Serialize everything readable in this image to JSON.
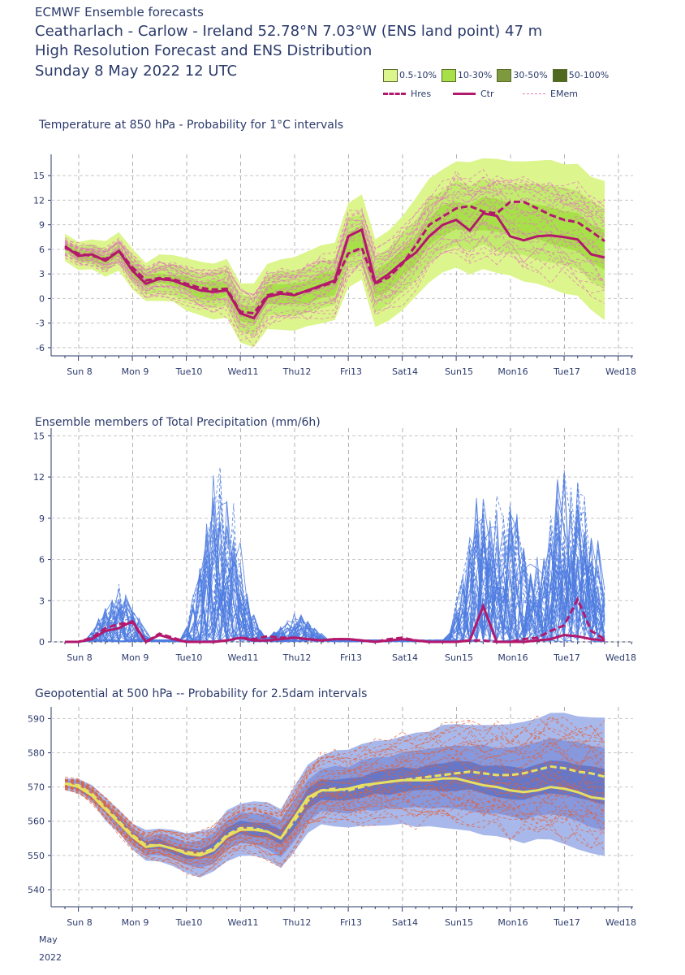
{
  "header": {
    "source": "ECMWF Ensemble forecasts",
    "location": "Ceatharlach - Carlow - Ireland 52.78°N 7.03°W (ENS land point) 47 m",
    "subtitle": "High Resolution Forecast and ENS Distribution",
    "date": "Sunday  8 May 2022 12 UTC"
  },
  "legend": {
    "bands": [
      {
        "label": "0.5-10%",
        "color": "#dcf58c"
      },
      {
        "label": "10-30%",
        "color": "#a8e04a"
      },
      {
        "label": "30-50%",
        "color": "#7f9a3e"
      },
      {
        "label": "50-100%",
        "color": "#4f6a1e"
      }
    ],
    "lines": [
      {
        "label": "Hres",
        "color": "#b3186c",
        "style": "dashed-thick"
      },
      {
        "label": "Ctr",
        "color": "#b3186c",
        "style": "solid-thick"
      },
      {
        "label": "EMem",
        "color": "#e07ab8",
        "style": "dashed-thin"
      }
    ]
  },
  "chart_data": [
    {
      "type": "line",
      "title": "Temperature at 850 hPa - Probability for 1°C intervals",
      "x_labels": [
        "Sun 8",
        "Mon 9",
        "Tue10",
        "Wed11",
        "Thu12",
        "Fri13",
        "Sat14",
        "Sun15",
        "Mon16",
        "Tue17",
        "Wed18"
      ],
      "x_label_colors": [
        "#d62e2e",
        "#2b3a6b",
        "#2b3a6b",
        "#2b3a6b",
        "#2b3a6b",
        "#2b3a6b",
        "#2b3a6b",
        "#d62e2e",
        "#2b3a6b",
        "#2b3a6b",
        "#2b3a6b"
      ],
      "xlim": [
        0,
        10
      ],
      "ylim": [
        -7,
        17
      ],
      "yticks": [
        -6,
        -3,
        0,
        3,
        6,
        9,
        12,
        15
      ],
      "grid": true,
      "series": [
        {
          "name": "Hres",
          "x": [
            0,
            0.25,
            0.5,
            0.75,
            1,
            1.25,
            1.5,
            1.75,
            2,
            2.25,
            2.5,
            2.75,
            3,
            3.25,
            3.5,
            3.75,
            4,
            4.25,
            4.5,
            4.75,
            5,
            5.25,
            5.5,
            5.75,
            6,
            6.25,
            6.5,
            6.75,
            7,
            7.25,
            7.5,
            7.75,
            8,
            8.25,
            8.5,
            8.75,
            9,
            9.25,
            9.5,
            9.75,
            10
          ],
          "values": [
            6.2,
            5.5,
            5.2,
            4.8,
            5.8,
            3.8,
            2.2,
            2.5,
            2.4,
            1.8,
            1.3,
            1.1,
            1.2,
            -1.6,
            -1.8,
            0.4,
            0.8,
            0.5,
            0.9,
            1.5,
            2,
            5.5,
            6.2,
            1.8,
            2.6,
            4.2,
            6.5,
            9,
            10,
            11,
            11.3,
            10.6,
            10.4,
            11.8,
            11.8,
            11,
            10.2,
            9.6,
            9.3,
            8.2,
            7
          ]
        },
        {
          "name": "Ctr",
          "x": [
            0,
            0.25,
            0.5,
            0.75,
            1,
            1.25,
            1.5,
            1.75,
            2,
            2.25,
            2.5,
            2.75,
            3,
            3.25,
            3.5,
            3.75,
            4,
            4.25,
            4.5,
            4.75,
            5,
            5.25,
            5.5,
            5.75,
            6,
            6.25,
            6.5,
            6.75,
            7,
            7.25,
            7.5,
            7.75,
            8,
            8.25,
            8.5,
            8.75,
            9,
            9.25,
            9.5,
            9.75,
            10
          ],
          "values": [
            6.4,
            5.2,
            5.4,
            4.6,
            5.8,
            3.4,
            1.8,
            2.4,
            2.2,
            1.6,
            1,
            0.8,
            1,
            -1.8,
            -2.4,
            0.2,
            0.6,
            0.4,
            1,
            1.6,
            2.2,
            7.6,
            8.4,
            1.9,
            3,
            4.4,
            5.6,
            7.6,
            9,
            9.6,
            8.3,
            10.4,
            10.1,
            7.6,
            7.1,
            7.6,
            7.7,
            7.5,
            7.2,
            5.4,
            5
          ]
        },
        {
          "name": "EMem",
          "values": []
        }
      ]
    },
    {
      "type": "line",
      "title": "Ensemble members of Total Precipitation (mm/6h)",
      "x_labels": [
        "Sun 8",
        "Mon 9",
        "Tue10",
        "Wed11",
        "Thu12",
        "Fri13",
        "Sat14",
        "Sun15",
        "Mon16",
        "Tue17",
        "Wed18"
      ],
      "xlim": [
        0,
        10
      ],
      "ylim": [
        0,
        15.2
      ],
      "yticks": [
        0,
        3,
        6,
        9,
        12,
        15
      ],
      "grid": true,
      "series": [
        {
          "name": "Ctr",
          "x": [
            0,
            0.25,
            0.5,
            0.75,
            1,
            1.25,
            1.5,
            1.75,
            2,
            2.25,
            2.5,
            2.75,
            3,
            3.25,
            3.5,
            3.75,
            4,
            4.25,
            4.5,
            4.75,
            5,
            5.25,
            5.5,
            5.75,
            6,
            6.25,
            6.5,
            6.75,
            7,
            7.25,
            7.5,
            7.75,
            8,
            8.25,
            8.5,
            8.75,
            9,
            9.25,
            9.5,
            9.75,
            10
          ],
          "values": [
            0,
            0,
            0.2,
            0.8,
            1,
            1.5,
            0,
            0.5,
            0.2,
            0,
            0,
            0,
            0.1,
            0.3,
            0.1,
            0.1,
            0.2,
            0.3,
            0.2,
            0.1,
            0.2,
            0.2,
            0.1,
            0,
            0.1,
            0.2,
            0.1,
            0,
            0,
            0,
            0.1,
            2.6,
            0,
            0,
            0,
            0.1,
            0.2,
            0.5,
            0.4,
            0.2,
            0.1
          ]
        },
        {
          "name": "Hres",
          "x": [
            0,
            0.25,
            0.5,
            0.75,
            1,
            1.25,
            1.5,
            1.75,
            2,
            2.25,
            2.5,
            2.75,
            3,
            3.25,
            3.5,
            3.75,
            4,
            4.25,
            4.5,
            4.75,
            5,
            5.25,
            5.5,
            5.75,
            6,
            6.25,
            6.5,
            6.75,
            7,
            7.25,
            7.5,
            7.75,
            8,
            8.25,
            8.5,
            8.75,
            9,
            9.25,
            9.5,
            9.75,
            10
          ],
          "values": [
            0,
            0,
            0.3,
            1,
            1.3,
            1.4,
            0,
            0.6,
            0.3,
            0,
            0,
            0,
            0.1,
            0.3,
            0.2,
            0.4,
            0.3,
            0.3,
            0.2,
            0.1,
            0.2,
            0.2,
            0.1,
            0,
            0.2,
            0.3,
            0.1,
            0,
            0,
            0,
            0.1,
            0.1,
            0,
            0,
            0.2,
            0.3,
            0.8,
            1.2,
            3.1,
            0.8,
            0.2
          ]
        },
        {
          "name": "EMem",
          "values": []
        }
      ]
    },
    {
      "type": "line",
      "title": "Geopotential at 500 hPa -- Probability for 2.5dam intervals",
      "x_labels": [
        "Sun 8",
        "Mon 9",
        "Tue10",
        "Wed11",
        "Thu12",
        "Fri13",
        "Sat14",
        "Sun15",
        "Mon16",
        "Tue17",
        "Wed18"
      ],
      "x_sublabels": [
        "May",
        "2022"
      ],
      "xlim": [
        0,
        10
      ],
      "ylim": [
        535,
        592
      ],
      "yticks": [
        540,
        550,
        560,
        570,
        580,
        590
      ],
      "grid": true,
      "series": [
        {
          "name": "Hres",
          "x": [
            0,
            0.25,
            0.5,
            0.75,
            1,
            1.25,
            1.5,
            1.75,
            2,
            2.25,
            2.5,
            2.75,
            3,
            3.25,
            3.5,
            3.75,
            4,
            4.25,
            4.5,
            4.75,
            5,
            5.25,
            5.5,
            5.75,
            6,
            6.25,
            6.5,
            6.75,
            7,
            7.25,
            7.5,
            7.75,
            8,
            8.25,
            8.5,
            8.75,
            9,
            9.25,
            9.5,
            9.75,
            10
          ],
          "values": [
            571,
            570.5,
            568,
            564,
            560,
            556,
            553,
            553,
            552,
            551,
            550.5,
            552,
            556,
            558,
            558,
            557,
            555,
            560,
            566,
            569,
            569.5,
            569,
            570,
            571,
            571.5,
            572,
            572.5,
            573,
            573.5,
            574,
            574.5,
            574,
            573.5,
            573.5,
            574,
            575,
            576,
            575.5,
            574.5,
            574,
            573
          ]
        },
        {
          "name": "Ctr",
          "x": [
            0,
            0.25,
            0.5,
            0.75,
            1,
            1.25,
            1.5,
            1.75,
            2,
            2.25,
            2.5,
            2.75,
            3,
            3.25,
            3.5,
            3.75,
            4,
            4.25,
            4.5,
            4.75,
            5,
            5.25,
            5.5,
            5.75,
            6,
            6.25,
            6.5,
            6.75,
            7,
            7.25,
            7.5,
            7.75,
            8,
            8.25,
            8.5,
            8.75,
            9,
            9.25,
            9.5,
            9.75,
            10
          ],
          "values": [
            571,
            570,
            567.5,
            563.5,
            559.5,
            555.5,
            552.5,
            553,
            552,
            550.5,
            550,
            551.5,
            555.5,
            557.5,
            557.5,
            557,
            555,
            561,
            567,
            569,
            569,
            569.5,
            570.5,
            571,
            571.5,
            572,
            572,
            572,
            572.5,
            572.5,
            571.5,
            570.5,
            570,
            569,
            568.5,
            569,
            570,
            569.5,
            568.5,
            567,
            566.5
          ]
        },
        {
          "name": "EMem",
          "values": []
        }
      ]
    }
  ]
}
